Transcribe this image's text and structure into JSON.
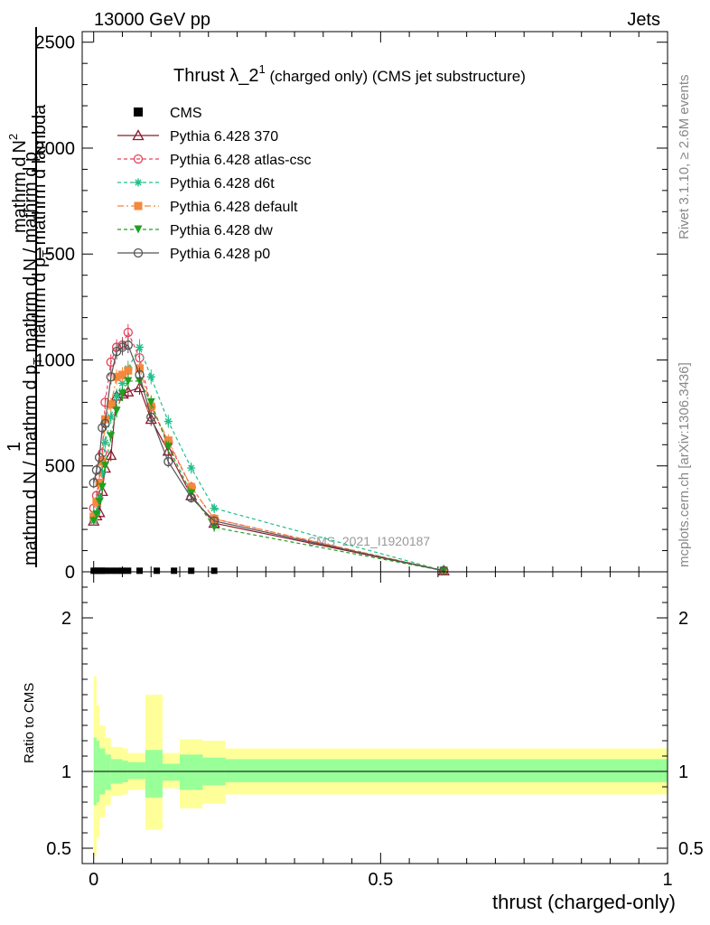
{
  "header": {
    "left": "13000 GeV pp",
    "right": "Jets"
  },
  "title": {
    "main": "Thrust λ_2",
    "sup": "1",
    "rest": " (charged only) (CMS jet substructure)"
  },
  "side_labels": {
    "rivet": "Rivet 3.1.10, ≥ 2.6M events",
    "mcplots": "mcplots.cern.ch [arXiv:1306.3436]"
  },
  "watermark": "CMS_2021_I1920187",
  "top_ylabel": {
    "numerator_a": "mathrm d",
    "numerator_b": "N",
    "numerator_sup": "2",
    "denominator_a": "mathrm d p",
    "denominator_sub": "T",
    "denominator_b": " mathrm d lambda",
    "one": "1",
    "full_a": "mathrm d N / mathrm d p",
    "full_sub": "T",
    "full_b": " mathrm d N / mathrm d p"
  },
  "ratio_ylabel": "Ratio to CMS",
  "xlabel": "thrust (charged-only)",
  "colors": {
    "cms": "#000000",
    "p370": "#8b1a2e",
    "atlas": "#e8405a",
    "d6t": "#1fc08a",
    "default": "#f5883a",
    "dw": "#20a020",
    "p0": "#555555",
    "band_outer": "#ffff99",
    "band_inner": "#99ff99"
  },
  "chart_data": {
    "type": "line",
    "x": [
      0.0,
      0.005,
      0.01,
      0.015,
      0.02,
      0.03,
      0.04,
      0.05,
      0.06,
      0.08,
      0.1,
      0.13,
      0.17,
      0.21,
      0.61
    ],
    "xlim": [
      -0.02,
      1.0
    ],
    "ylim": [
      0,
      2550
    ],
    "yticks": [
      0,
      500,
      1000,
      1500,
      2000,
      2500
    ],
    "xticks": [
      0,
      0.5,
      1
    ],
    "ratio_ylim": [
      0.4,
      2.3
    ],
    "ratio_yticks": [
      0.5,
      1,
      2
    ],
    "cms_x": [
      0.0,
      0.005,
      0.01,
      0.015,
      0.02,
      0.03,
      0.04,
      0.05,
      0.06,
      0.08,
      0.11,
      0.14,
      0.17,
      0.21
    ],
    "cms_y": [
      5,
      5,
      5,
      5,
      5,
      5,
      5,
      5,
      5,
      5,
      5,
      5,
      5,
      5
    ],
    "series": [
      {
        "name": "Pythia 6.428 370",
        "key": "p370",
        "marker": "triangle-open",
        "dash": "",
        "y": [
          240,
          265,
          280,
          380,
          490,
          550,
          830,
          840,
          850,
          870,
          720,
          570,
          360,
          230,
          5
        ]
      },
      {
        "name": "Pythia 6.428 atlas-csc",
        "key": "atlas",
        "marker": "circle-open",
        "dash": "4,3",
        "y": [
          300,
          360,
          450,
          560,
          800,
          990,
          1060,
          1070,
          1130,
          1010,
          780,
          610,
          400,
          250,
          5
        ]
      },
      {
        "name": "Pythia 6.428 d6t",
        "key": "d6t",
        "marker": "star",
        "dash": "4,3",
        "y": [
          240,
          280,
          350,
          470,
          610,
          730,
          830,
          890,
          960,
          1060,
          920,
          710,
          490,
          300,
          5
        ]
      },
      {
        "name": "Pythia 6.428 default",
        "key": "default",
        "marker": "square",
        "dash": "7,3,2,3",
        "y": [
          260,
          330,
          420,
          520,
          720,
          790,
          920,
          930,
          950,
          960,
          780,
          620,
          400,
          250,
          5
        ]
      },
      {
        "name": "Pythia 6.428 dw",
        "key": "dw",
        "marker": "triangle-down",
        "dash": "4,3",
        "y": [
          240,
          270,
          330,
          400,
          500,
          640,
          760,
          840,
          900,
          900,
          800,
          590,
          370,
          210,
          5
        ]
      },
      {
        "name": "Pythia 6.428 p0",
        "key": "p0",
        "marker": "circle-open",
        "dash": "",
        "y": [
          420,
          480,
          540,
          680,
          700,
          920,
          1040,
          1060,
          1070,
          930,
          730,
          520,
          350,
          240,
          5
        ]
      }
    ],
    "ratio_bands": [
      {
        "x0": 0.0,
        "x1": 0.005,
        "outer": [
          0.45,
          1.62
        ],
        "inner": [
          0.78,
          1.22
        ]
      },
      {
        "x0": 0.005,
        "x1": 0.01,
        "outer": [
          0.57,
          1.43
        ],
        "inner": [
          0.8,
          1.2
        ]
      },
      {
        "x0": 0.01,
        "x1": 0.02,
        "outer": [
          0.7,
          1.3
        ],
        "inner": [
          0.85,
          1.15
        ]
      },
      {
        "x0": 0.02,
        "x1": 0.03,
        "outer": [
          0.78,
          1.22
        ],
        "inner": [
          0.88,
          1.11
        ]
      },
      {
        "x0": 0.03,
        "x1": 0.05,
        "outer": [
          0.84,
          1.16
        ],
        "inner": [
          0.92,
          1.08
        ]
      },
      {
        "x0": 0.05,
        "x1": 0.06,
        "outer": [
          0.85,
          1.15
        ],
        "inner": [
          0.93,
          1.07
        ]
      },
      {
        "x0": 0.06,
        "x1": 0.09,
        "outer": [
          0.88,
          1.12
        ],
        "inner": [
          0.95,
          1.06
        ]
      },
      {
        "x0": 0.09,
        "x1": 0.12,
        "outer": [
          0.62,
          1.5
        ],
        "inner": [
          0.83,
          1.14
        ]
      },
      {
        "x0": 0.12,
        "x1": 0.15,
        "outer": [
          0.89,
          1.12
        ],
        "inner": [
          0.94,
          1.05
        ]
      },
      {
        "x0": 0.15,
        "x1": 0.19,
        "outer": [
          0.76,
          1.21
        ],
        "inner": [
          0.88,
          1.11
        ]
      },
      {
        "x0": 0.19,
        "x1": 0.23,
        "outer": [
          0.79,
          1.2
        ],
        "inner": [
          0.91,
          1.09
        ]
      },
      {
        "x0": 0.23,
        "x1": 1.0,
        "outer": [
          0.85,
          1.15
        ],
        "inner": [
          0.93,
          1.08
        ]
      }
    ]
  }
}
